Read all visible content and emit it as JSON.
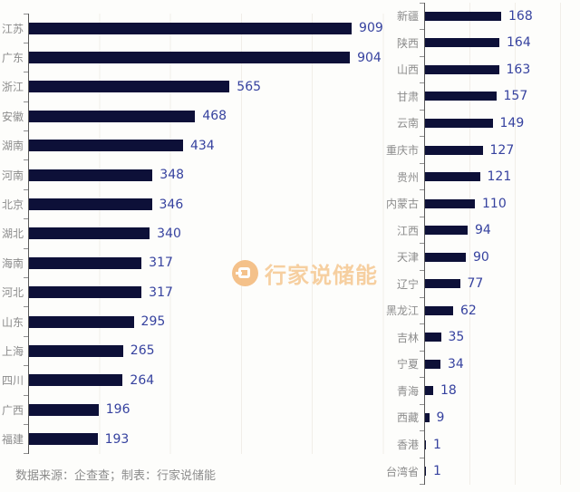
{
  "page": {
    "background": "#fdfdfb"
  },
  "colors": {
    "bar": "#0d1038",
    "value_label": "#36429f",
    "category_label": "#8c8c8c",
    "axis": "#595959",
    "gridline": "#f1eee8",
    "watermark": "#f6cd9c",
    "watermark_logo": "#f4be85"
  },
  "watermark": {
    "brand": "行家说储能"
  },
  "footer": {
    "source_note": "数据来源：企查查；制表：行家说储能"
  },
  "chart_data": [
    {
      "type": "bar",
      "orientation": "horizontal",
      "title": "",
      "categories": [
        "江苏",
        "广东",
        "浙江",
        "安徽",
        "湖南",
        "河南",
        "北京",
        "湖北",
        "海南",
        "河北",
        "山东",
        "上海",
        "四川",
        "广西",
        "福建"
      ],
      "values": [
        909,
        904,
        565,
        468,
        434,
        348,
        346,
        340,
        317,
        317,
        295,
        265,
        264,
        196,
        193
      ],
      "xlim": [
        0,
        1000
      ],
      "gridline_interval": 200,
      "grid": true,
      "legend": "none",
      "value_labels": true,
      "value_axis_hidden": true
    },
    {
      "type": "bar",
      "orientation": "horizontal",
      "title": "",
      "categories": [
        "新疆",
        "陕西",
        "山西",
        "甘肃",
        "云南",
        "重庆市",
        "贵州",
        "内蒙古",
        "江西",
        "天津",
        "辽宁",
        "黑龙江",
        "吉林",
        "宁夏",
        "青海",
        "西藏",
        "香港",
        "台湾省"
      ],
      "values": [
        168,
        164,
        163,
        157,
        149,
        127,
        121,
        110,
        94,
        90,
        77,
        62,
        35,
        34,
        18,
        9,
        1,
        1
      ],
      "xlim": [
        0,
        300
      ],
      "gridline_interval": 100,
      "grid": true,
      "legend": "none",
      "value_labels": true,
      "value_axis_hidden": true
    }
  ]
}
